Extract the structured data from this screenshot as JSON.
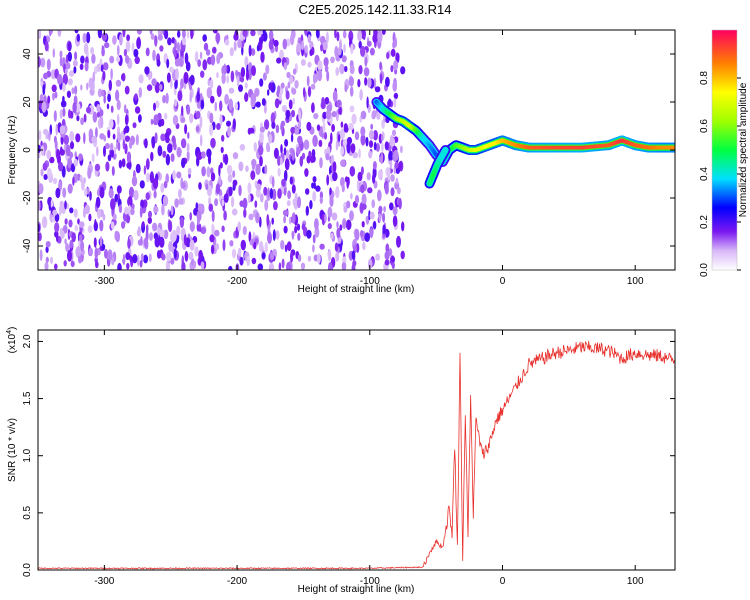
{
  "title": "C2E5.2025.142.11.33.R14",
  "chart_data": [
    {
      "type": "heatmap",
      "panel": "spectrogram",
      "xlabel": "Height of straight line (km)",
      "ylabel": "Frequency (Hz)",
      "xlim": [
        -350,
        130
      ],
      "ylim": [
        -50,
        50
      ],
      "xticks": [
        -300,
        -200,
        -100,
        0,
        100
      ],
      "xtick_labels": [
        "-300",
        "-200",
        "-100",
        "0",
        "100"
      ],
      "yticks": [
        -40,
        -20,
        0,
        20,
        40
      ],
      "ytick_labels": [
        "-40",
        "-20",
        "0",
        "20",
        "40"
      ],
      "noise_region": {
        "x": [
          -350,
          -75
        ],
        "y": [
          -50,
          50
        ],
        "level": 0.15
      },
      "signal_trace": {
        "x": [
          -95,
          -90,
          -85,
          -80,
          -75,
          -70,
          -65,
          -60,
          -55,
          -50,
          -45,
          -40,
          -35,
          -30,
          -25,
          -20,
          -15,
          -10,
          -5,
          0,
          10,
          20,
          40,
          60,
          80,
          90,
          100,
          110,
          120,
          130
        ],
        "y": [
          20,
          17,
          15,
          13,
          12,
          10,
          8,
          5,
          2,
          -2,
          -5,
          0,
          2,
          1,
          0,
          0,
          1,
          2,
          3,
          4,
          2,
          1,
          1,
          1,
          2,
          4,
          2,
          1,
          1,
          1
        ],
        "amplitude": [
          0.3,
          0.4,
          0.5,
          0.6,
          0.65,
          0.7,
          0.55,
          0.4,
          0.35,
          0.3,
          0.35,
          0.45,
          0.55,
          0.6,
          0.65,
          0.7,
          0.7,
          0.75,
          0.75,
          0.8,
          0.85,
          0.9,
          0.92,
          0.93,
          0.9,
          0.95,
          0.9,
          0.88,
          0.85,
          0.85
        ]
      },
      "branch_trace": {
        "x": [
          -55,
          -52,
          -49,
          -46,
          -43
        ],
        "y": [
          -14,
          -10,
          -6,
          -3,
          0
        ],
        "amplitude": [
          0.45,
          0.5,
          0.45,
          0.4,
          0.4
        ]
      },
      "colorbar": {
        "label": "Normalized spectral amplitude",
        "range": [
          0,
          1
        ],
        "ticks": [
          0.0,
          0.2,
          0.4,
          0.6,
          0.8
        ],
        "tick_labels": [
          "0.0",
          "0.2",
          "0.4",
          "0.6",
          "0.8"
        ]
      }
    },
    {
      "type": "line",
      "panel": "snr",
      "xlabel": "Height of straight line (km)",
      "ylabel": "SNR (10 * v/v)",
      "multiplier": "(x10",
      "multiplier_exp": "4",
      "multiplier_close": ")",
      "xlim": [
        -350,
        130
      ],
      "ylim": [
        0,
        2.1
      ],
      "xticks": [
        -300,
        -200,
        -100,
        0,
        100
      ],
      "xtick_labels": [
        "-300",
        "-200",
        "-100",
        "0",
        "100"
      ],
      "yticks": [
        0.0,
        0.5,
        1.0,
        1.5,
        2.0
      ],
      "ytick_labels": [
        "0.0",
        "0.5",
        "1.0",
        "1.5",
        "2.0"
      ],
      "color": "#e8302c",
      "series": [
        {
          "x": [
            -350,
            -200,
            -100,
            -60,
            -55,
            -50,
            -45,
            -40,
            -38,
            -36,
            -34,
            -32,
            -30,
            -28,
            -26,
            -24,
            -22,
            -20,
            -15,
            -10,
            -5,
            0,
            10,
            20,
            30,
            40,
            50,
            60,
            70,
            80,
            90,
            100,
            110,
            120,
            130
          ],
          "y": [
            0.01,
            0.01,
            0.01,
            0.02,
            0.15,
            0.25,
            0.2,
            0.55,
            0.3,
            1.1,
            0.2,
            1.9,
            0.1,
            1.4,
            0.3,
            1.5,
            0.5,
            1.3,
            1.0,
            1.1,
            1.3,
            1.4,
            1.6,
            1.8,
            1.85,
            1.9,
            1.92,
            1.95,
            1.94,
            1.92,
            1.85,
            1.9,
            1.88,
            1.87,
            1.83
          ]
        }
      ]
    }
  ]
}
